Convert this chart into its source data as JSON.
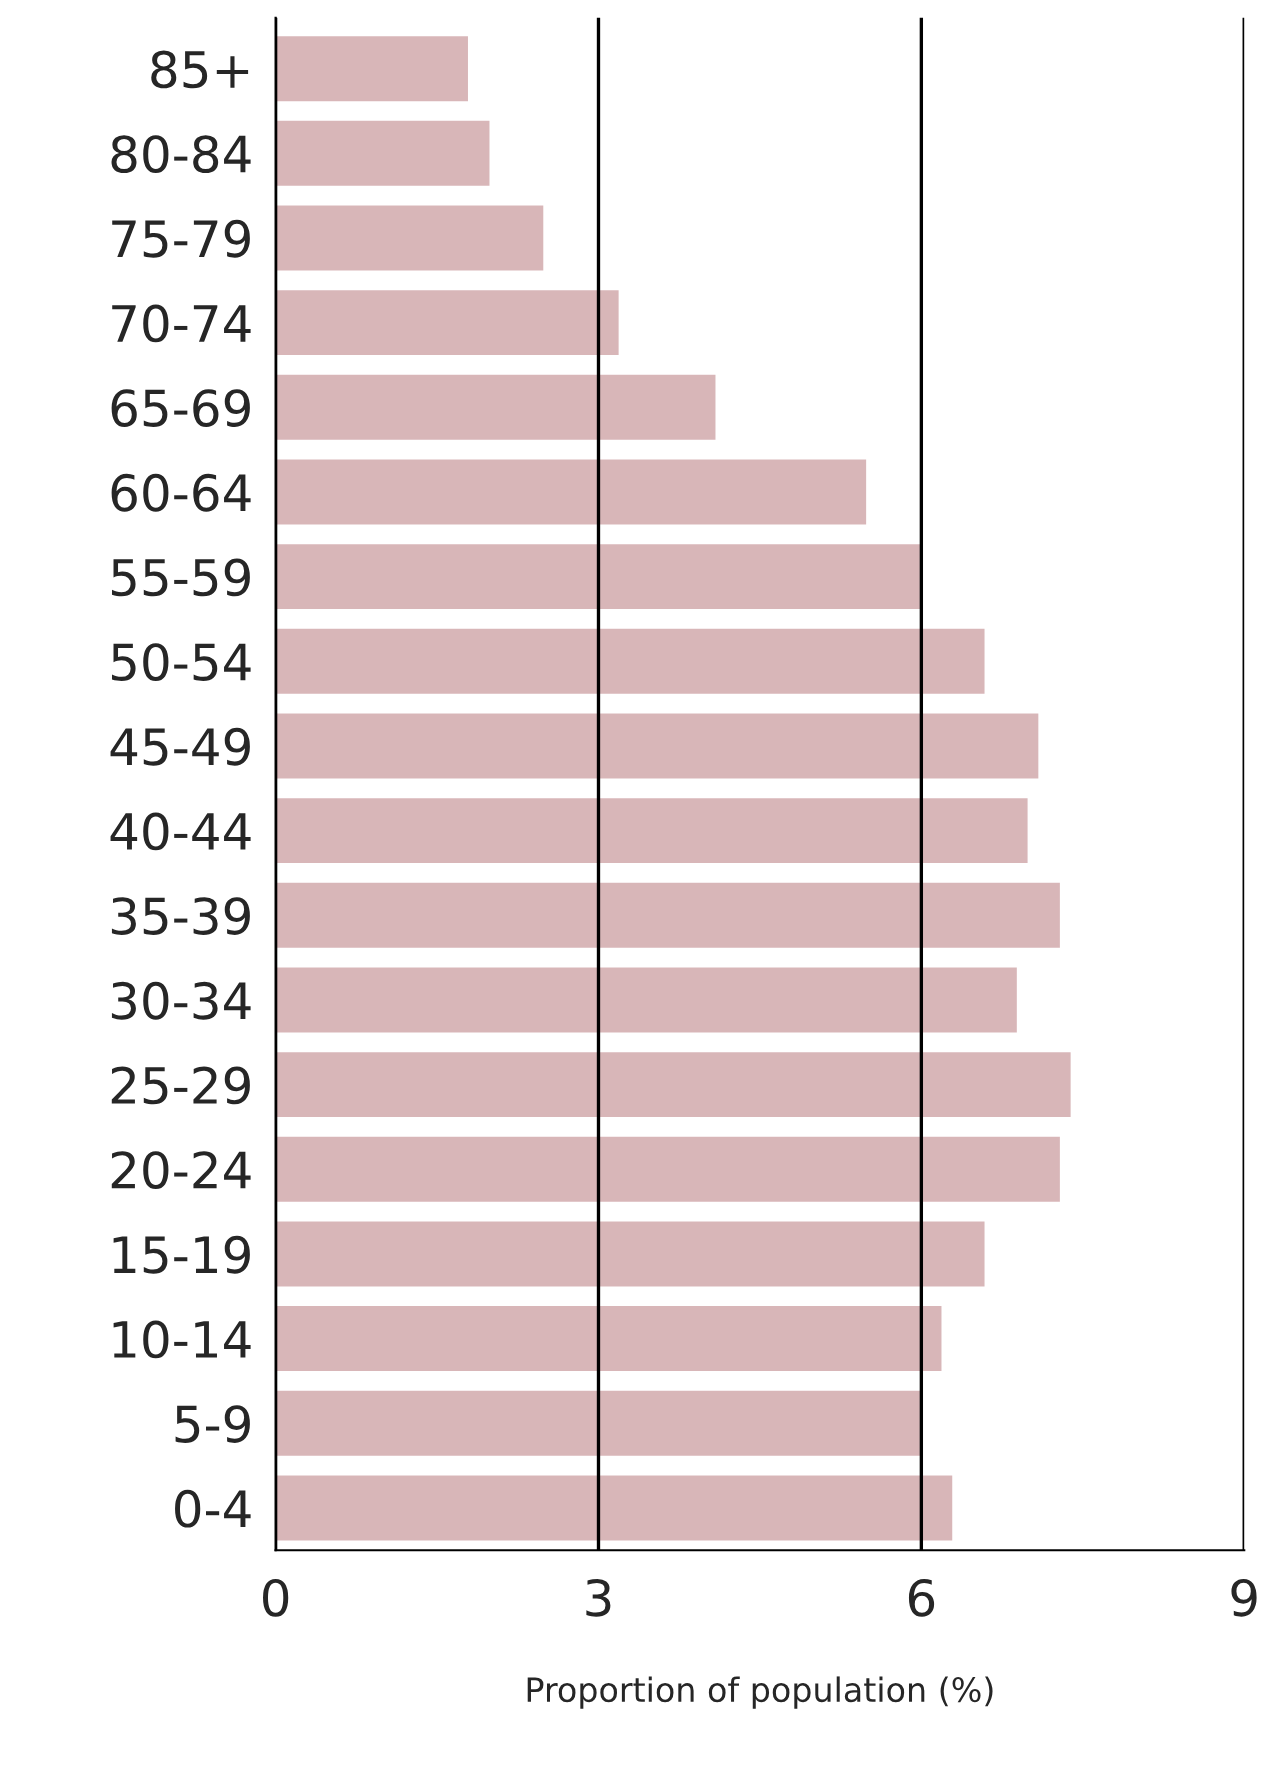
{
  "chart_data": {
    "type": "bar",
    "orientation": "horizontal",
    "xlabel": "Proportion of population (%)",
    "categories": [
      "85+",
      "80-84",
      "75-79",
      "70-74",
      "65-69",
      "60-64",
      "55-59",
      "50-54",
      "45-49",
      "40-44",
      "35-39",
      "30-34",
      "25-29",
      "20-24",
      "15-19",
      "10-14",
      "5-9",
      "0-4"
    ],
    "values": [
      1.8,
      2.0,
      2.5,
      3.2,
      4.1,
      5.5,
      6.0,
      6.6,
      7.1,
      7.0,
      7.3,
      6.9,
      7.4,
      7.3,
      6.6,
      6.2,
      6.0,
      6.3
    ],
    "color": "#d8b6b8",
    "xlim": [
      0,
      9
    ],
    "xticks": [
      0,
      3,
      6,
      9
    ],
    "grid": "x"
  }
}
